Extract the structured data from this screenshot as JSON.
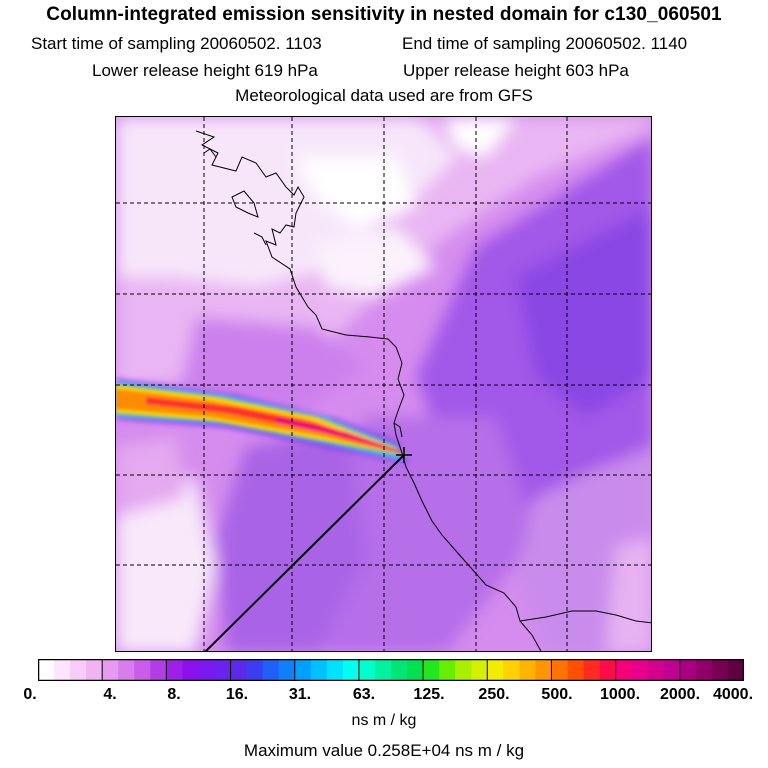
{
  "title": "Column-integrated emission sensitivity in nested domain for c130_060501",
  "sampling": {
    "start": "Start time of sampling 20060502.  1103",
    "end": "End time of sampling 20060502.  1140"
  },
  "release": {
    "lower": "Lower release height  619 hPa",
    "upper": "Upper release height  603 hPa"
  },
  "met_data": "Meteorological data used are from GFS",
  "colorbar": {
    "tick_labels": [
      "0.",
      "4.",
      "8.",
      "16.",
      "31.",
      "63.",
      "125.",
      "250.",
      "500.",
      "1000.",
      "2000.",
      "4000."
    ],
    "colors": [
      "#ffffff",
      "#fde6fd",
      "#f8ccf8",
      "#f2b3f3",
      "#e79aef",
      "#d97cee",
      "#c95ce9",
      "#b33ce6",
      "#9e1fe8",
      "#8a10ee",
      "#7a18f0",
      "#6a22ee",
      "#5a2ae6",
      "#3a3ef0",
      "#2060f8",
      "#1080fa",
      "#00a0ff",
      "#00c2ff",
      "#00e2ff",
      "#00ffee",
      "#00ffcc",
      "#00f2a0",
      "#00e676",
      "#00e050",
      "#24e61e",
      "#66ee00",
      "#a8f000",
      "#d4f000",
      "#f2ec00",
      "#ffd200",
      "#ffb400",
      "#ff9600",
      "#ff7400",
      "#ff5000",
      "#ff2a20",
      "#ff0c48",
      "#f5007a",
      "#e8008a",
      "#d4008e",
      "#c00090",
      "#a8007e",
      "#900068",
      "#780052",
      "#600040"
    ],
    "units": "ns m / kg"
  },
  "max_value": "Maximum value  0.258E+04 ns m / kg"
}
